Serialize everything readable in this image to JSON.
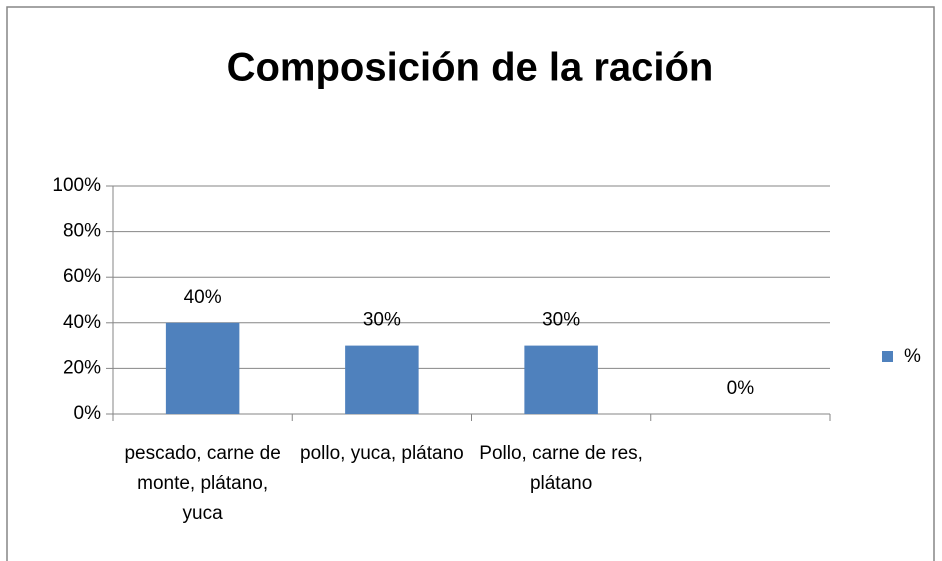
{
  "chart_data": {
    "type": "bar",
    "title": "Composición de la ración",
    "categories": [
      "pescado, carne de monte, plátano, yuca",
      "pollo, yuca, plátano",
      "Pollo, carne de res, plátano",
      null
    ],
    "series": [
      {
        "name": "%",
        "color": "#4f81bd",
        "values": [
          40,
          30,
          30,
          0
        ],
        "value_labels": [
          "40%",
          "30%",
          "30%",
          "0%"
        ]
      }
    ],
    "ylim": [
      0,
      100
    ],
    "yticks": [
      {
        "value": 0,
        "label": "0%"
      },
      {
        "value": 20,
        "label": "20%"
      },
      {
        "value": 40,
        "label": "40%"
      },
      {
        "value": 60,
        "label": "60%"
      },
      {
        "value": 80,
        "label": "80%"
      },
      {
        "value": 100,
        "label": "100%"
      }
    ],
    "grid": true,
    "legend": "right"
  }
}
